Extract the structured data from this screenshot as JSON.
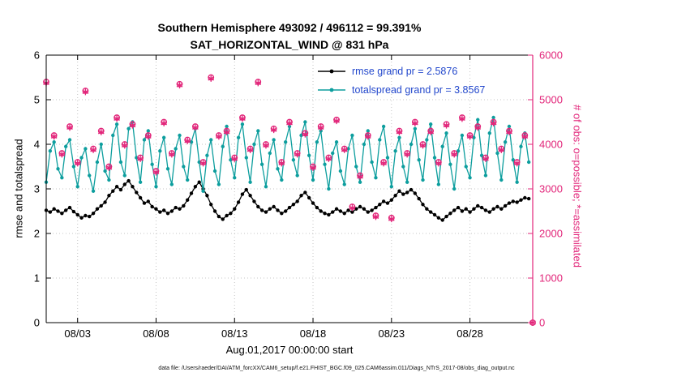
{
  "figure": {
    "title_line1": "Southern Hemisphere 493092 / 496112 = 99.391%",
    "title_line2": "SAT_HORIZONTAL_WIND @ 831 hPa",
    "xlabel": "Aug.01,2017 00:00:00 start",
    "ylabel_left": "rmse and totalspread",
    "ylabel_right": "# of obs: o=possible; *=assimilated",
    "caption": "data file: /Users/raeder/DAI/ATM_forcXX/CAM6_setup/f.e21.FHIST_BGC.f09_025.CAM6assim.011/Diags_NTrS_2017-08/obs_diag_output.nc"
  },
  "legend": {
    "rmse_label": "rmse grand pr = 2.5876",
    "totalspread_label": "totalspread grand pr = 3.8567"
  },
  "chart_data": {
    "type": "line",
    "title": "Southern Hemisphere 493092 / 496112 = 99.391% — SAT_HORIZONTAL_WIND @ 831 hPa",
    "x_start_days": 0,
    "x_step_days": 0.25,
    "series": [
      {
        "name": "rmse",
        "grand_pr": 2.5876,
        "color": "#000000",
        "values": [
          2.52,
          2.48,
          2.55,
          2.5,
          2.45,
          2.52,
          2.58,
          2.49,
          2.42,
          2.35,
          2.4,
          2.38,
          2.45,
          2.55,
          2.62,
          2.7,
          2.85,
          2.95,
          3.05,
          2.98,
          3.1,
          3.18,
          3.05,
          2.92,
          2.8,
          2.68,
          2.72,
          2.6,
          2.55,
          2.48,
          2.52,
          2.45,
          2.5,
          2.58,
          2.55,
          2.62,
          2.75,
          2.9,
          3.05,
          3.15,
          3.0,
          2.85,
          2.65,
          2.5,
          2.38,
          2.32,
          2.4,
          2.45,
          2.55,
          2.7,
          2.88,
          2.98,
          2.85,
          2.72,
          2.6,
          2.52,
          2.48,
          2.55,
          2.6,
          2.52,
          2.45,
          2.5,
          2.58,
          2.65,
          2.72,
          2.85,
          2.92,
          2.8,
          2.68,
          2.58,
          2.5,
          2.45,
          2.42,
          2.48,
          2.55,
          2.5,
          2.45,
          2.52,
          2.48,
          2.55,
          2.6,
          2.55,
          2.48,
          2.52,
          2.58,
          2.65,
          2.72,
          2.68,
          2.75,
          2.85,
          2.95,
          2.88,
          2.92,
          2.98,
          2.9,
          2.78,
          2.65,
          2.55,
          2.48,
          2.42,
          2.35,
          2.3,
          2.38,
          2.45,
          2.52,
          2.58,
          2.5,
          2.55,
          2.48,
          2.55,
          2.62,
          2.58,
          2.52,
          2.48,
          2.55,
          2.6,
          2.55,
          2.62,
          2.68,
          2.72,
          2.7,
          2.75,
          2.8,
          2.78
        ]
      },
      {
        "name": "totalspread",
        "grand_pr": 3.8567,
        "color": "#0d9e9e",
        "values": [
          3.15,
          3.85,
          4.05,
          3.45,
          3.25,
          3.95,
          4.1,
          3.5,
          3.05,
          3.7,
          3.9,
          3.3,
          2.95,
          3.6,
          4.0,
          3.4,
          3.2,
          4.2,
          4.45,
          3.6,
          3.3,
          4.35,
          4.5,
          3.7,
          3.15,
          4.1,
          4.3,
          3.55,
          3.05,
          3.85,
          4.15,
          3.45,
          3.1,
          3.9,
          4.2,
          3.5,
          3.2,
          4.05,
          4.35,
          3.6,
          2.95,
          3.75,
          4.1,
          3.4,
          3.1,
          3.95,
          4.4,
          3.65,
          3.25,
          4.15,
          4.45,
          3.7,
          3.15,
          4.0,
          4.3,
          3.55,
          3.05,
          3.8,
          4.1,
          3.45,
          3.2,
          4.05,
          4.4,
          3.65,
          3.3,
          4.2,
          4.5,
          3.75,
          3.2,
          4.05,
          4.3,
          3.55,
          3.0,
          3.8,
          4.05,
          3.4,
          3.1,
          3.9,
          4.2,
          3.5,
          3.15,
          4.0,
          4.3,
          3.6,
          3.25,
          4.1,
          4.4,
          3.7,
          3.05,
          3.85,
          4.15,
          3.5,
          3.15,
          4.0,
          4.35,
          3.65,
          3.2,
          4.1,
          4.45,
          3.7,
          3.1,
          3.95,
          4.25,
          3.55,
          3.0,
          3.85,
          4.2,
          3.5,
          3.25,
          4.15,
          4.55,
          3.75,
          3.3,
          4.25,
          4.6,
          3.8,
          3.2,
          4.05,
          4.4,
          3.65,
          3.15,
          3.95,
          4.25,
          3.6
        ]
      }
    ],
    "obs": {
      "x_start_days": 0,
      "x_step_days": 0.5,
      "possible": [
        5400,
        4200,
        3800,
        4400,
        3600,
        5200,
        3900,
        4300,
        3500,
        4600,
        4000,
        4450,
        3700,
        4200,
        3400,
        4500,
        3800,
        5350,
        4100,
        4400,
        3600,
        5500,
        4200,
        4300,
        3700,
        4600,
        3900,
        5400,
        4000,
        4350,
        3600,
        4500,
        3800,
        4250,
        3500,
        4400,
        3700,
        4550,
        3900,
        2600,
        3300,
        4200,
        2400,
        3600,
        2350,
        4300,
        3800,
        4500,
        4000,
        4300,
        3600,
        4450,
        3800,
        4600,
        4200,
        4400,
        3700,
        4500,
        3900,
        4300,
        3600,
        4200,
        0
      ],
      "assimilated": [
        5375,
        4175,
        3775,
        4375,
        3575,
        5175,
        3875,
        4275,
        3475,
        4575,
        3975,
        4425,
        3675,
        4175,
        3375,
        4475,
        3775,
        5325,
        4075,
        4375,
        3575,
        5475,
        4175,
        4275,
        3675,
        4575,
        3875,
        5375,
        3975,
        4325,
        3575,
        4475,
        3775,
        4225,
        3475,
        4375,
        3675,
        4525,
        3875,
        2575,
        3275,
        4175,
        2375,
        3575,
        2325,
        4275,
        3775,
        4475,
        3975,
        4275,
        3575,
        4425,
        3775,
        4575,
        4175,
        4375,
        3675,
        4475,
        3875,
        4275,
        3575,
        4175,
        0
      ]
    },
    "axes": {
      "xlim_days": [
        0,
        31
      ],
      "xticks_days": [
        2,
        7,
        12,
        17,
        22,
        27
      ],
      "xtick_labels": [
        "08/03",
        "08/08",
        "08/13",
        "08/18",
        "08/23",
        "08/28"
      ],
      "xlabel": "Aug.01,2017 00:00:00 start",
      "ylim_left": [
        0,
        6
      ],
      "yticks_left": [
        0,
        1,
        2,
        3,
        4,
        5,
        6
      ],
      "ylabel_left": "rmse and totalspread",
      "ylim_right": [
        0,
        6000
      ],
      "yticks_right": [
        0,
        1000,
        2000,
        3000,
        4000,
        5000,
        6000
      ],
      "ylabel_right": "# of obs: o=possible; *=assimilated",
      "grid": "on",
      "legend_position": "top-right-inside"
    },
    "colors": {
      "rmse": "#000000",
      "totalspread": "#0d9e9e",
      "obs": "#e2267a",
      "legend_text": "#2247cc",
      "grid": "#c4c4c4"
    }
  }
}
